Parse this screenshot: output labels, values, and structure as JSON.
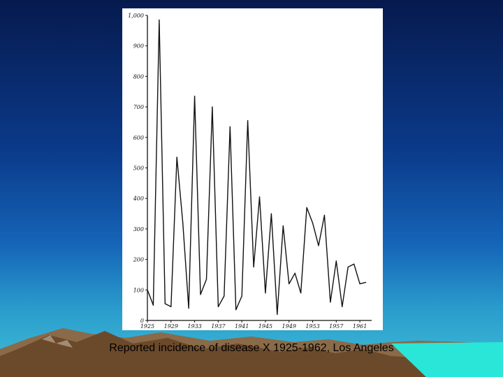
{
  "caption": "Reported incidence of disease X 1925-1962, Los Angeles",
  "colors": {
    "sky_top": "#061a4e",
    "sky_bottom": "#40c0d8",
    "mountain": "#7a5a3a",
    "line": "#111111"
  },
  "chart_data": {
    "type": "line",
    "title": "",
    "xlabel": "",
    "ylabel": "",
    "xlim": [
      1925,
      1963
    ],
    "ylim": [
      0,
      1000
    ],
    "y_tick_labels": [
      "0",
      "100",
      "200",
      "300",
      "400",
      "500",
      "600",
      "700",
      "800",
      "900",
      "1,000"
    ],
    "y_tick_values": [
      0,
      100,
      200,
      300,
      400,
      500,
      600,
      700,
      800,
      900,
      1000
    ],
    "x_tick_labels": [
      "1925",
      "1929",
      "1933",
      "1937",
      "1941",
      "1945",
      "1949",
      "1953",
      "1957",
      "1961"
    ],
    "x_tick_values": [
      1925,
      1929,
      1933,
      1937,
      1941,
      1945,
      1949,
      1953,
      1957,
      1961
    ],
    "grid": false,
    "x": [
      1925,
      1926,
      1927,
      1928,
      1929,
      1930,
      1931,
      1932,
      1933,
      1934,
      1935,
      1936,
      1937,
      1938,
      1939,
      1940,
      1941,
      1942,
      1943,
      1944,
      1945,
      1946,
      1947,
      1948,
      1949,
      1950,
      1951,
      1952,
      1953,
      1954,
      1955,
      1956,
      1957,
      1958,
      1959,
      1960,
      1961,
      1962
    ],
    "values": [
      100,
      50,
      985,
      55,
      45,
      535,
      320,
      40,
      735,
      85,
      135,
      700,
      45,
      80,
      635,
      35,
      80,
      655,
      175,
      405,
      90,
      350,
      20,
      310,
      120,
      155,
      90,
      370,
      320,
      245,
      345,
      60,
      195,
      45,
      175,
      185,
      120,
      125
    ]
  }
}
